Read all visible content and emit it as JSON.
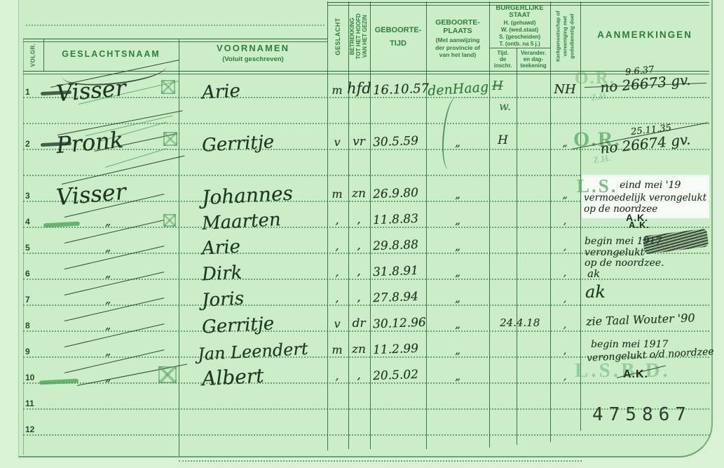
{
  "header": {
    "volgnr": "VOLGR.",
    "geslachtsnaam": "GESLACHTSNAAM",
    "voornamen": "VOORNAMEN",
    "voornamen_sub": "(Voluit geschreven)",
    "geslacht": "GESLACHT",
    "betrekking": "BETREKKING\nTOT HET HOOFD\nVAN HET GEZIN",
    "geboortetijd": "GEBOORTE-\nTIJD",
    "geboorteplaats": "GEBOORTE-\nPLAATS",
    "geboorteplaats_sub": "(Met aanwijzing\nder provincie of\nvan het land)",
    "burgerlijke_staat": "BURGERLIJKE\nSTAAT",
    "burgerlijke_staat_legend": "H. (gehuwd)\nW. (wed.staat)\nS. (gescheiden)\nT. (ontb. na 5 j.)",
    "burg_sub_tijd": "Tijd.\nde\ninschr.",
    "burg_sub_verander": "Verander.\nen dag-\nteekening",
    "kerkgenootschap": "Kerkgenootschap of\nvereeniging met\ngodsdienstig doel",
    "aanmerkingen": "AANMERKINGEN"
  },
  "rows": [
    {
      "nr": "1",
      "naam": "Visser",
      "voornamen": "Arie",
      "geslacht": "m",
      "betrekking": "hfd",
      "tijd": "16.10.57",
      "plaats": "denHaag",
      "burg_tijd": "H",
      "burg_tijd_onder": "w.",
      "kerk": "NH",
      "aanm_stamp": "O.R.",
      "aanm_stamp_sub": "Z.H.",
      "aanm_datum": "9.6.37",
      "aanm1": "no 26673 gv."
    },
    {
      "nr": "2",
      "naam": "Pronk",
      "voornamen": "Gerritje",
      "geslacht": "v",
      "betrekking": "vr",
      "tijd": "30.5.59",
      "plaats": "„",
      "burg_tijd": "H",
      "kerk": "„",
      "aanm_stamp": "O.R.",
      "aanm_stamp_sub": "Z.H.",
      "aanm_datum": "25.11.35",
      "aanm1": "no 26674 gv."
    },
    {
      "nr": "3",
      "naam": "Visser",
      "voornamen": "Johannes",
      "geslacht": "m",
      "betrekking": "zn",
      "tijd": "26.9.80",
      "plaats": "„",
      "kerk": "„",
      "aanm_stamp": "L.S.",
      "aanm1": "eind mei '19",
      "aanm2": "vermoedelijk verongelukt",
      "aanm3": "op de noordzee",
      "aanm_ak": "A.K."
    },
    {
      "nr": "4",
      "naam": "„",
      "voornamen": "Maarten",
      "geslacht": ",",
      "betrekking": ",",
      "tijd": "11.8.83",
      "plaats": "„",
      "kerk": ",",
      "aanm_ak": "A.K."
    },
    {
      "nr": "5",
      "naam": "„",
      "voornamen": "Arie",
      "geslacht": ",",
      "betrekking": ",",
      "tijd": "29.8.88",
      "plaats": "„",
      "kerk": ",",
      "aanm1": "begin mei 1917",
      "aanm2": "verongelukt",
      "aanm3": "op de noordzee.",
      "aanm4": "ak"
    },
    {
      "nr": "6",
      "naam": "„",
      "voornamen": "Dirk",
      "geslacht": ",",
      "betrekking": ",",
      "tijd": "31.8.91",
      "plaats": "„",
      "kerk": ","
    },
    {
      "nr": "7",
      "naam": "„",
      "voornamen": "Joris",
      "geslacht": ",",
      "betrekking": ",",
      "tijd": "27.8.94",
      "plaats": "„",
      "kerk": ",",
      "aanm1": "ak"
    },
    {
      "nr": "8",
      "naam": "„",
      "voornamen": "Gerritje",
      "geslacht": "v",
      "betrekking": "dr",
      "tijd": "30.12.96",
      "plaats": "„",
      "burg_verander": "24.4.18",
      "kerk": ",",
      "aanm1": "zie Taal Wouter '90"
    },
    {
      "nr": "9",
      "naam": "„",
      "voornamen": "Jan Leendert",
      "geslacht": "m",
      "betrekking": "zn",
      "tijd": "11.2.99",
      "plaats": "„",
      "kerk": ",",
      "aanm1": "begin mei 1917",
      "aanm2": "verongelukt o/d noordzee"
    },
    {
      "nr": "10",
      "naam": "„",
      "voornamen": "Albert",
      "geslacht": ",",
      "betrekking": ",",
      "tijd": "20.5.02",
      "plaats": "„",
      "kerk": ",",
      "aanm_stamp": "L.S.B.D.",
      "aanm_ak": "A.K."
    },
    {
      "nr": "11"
    },
    {
      "nr": "12"
    }
  ],
  "serial": "475867"
}
